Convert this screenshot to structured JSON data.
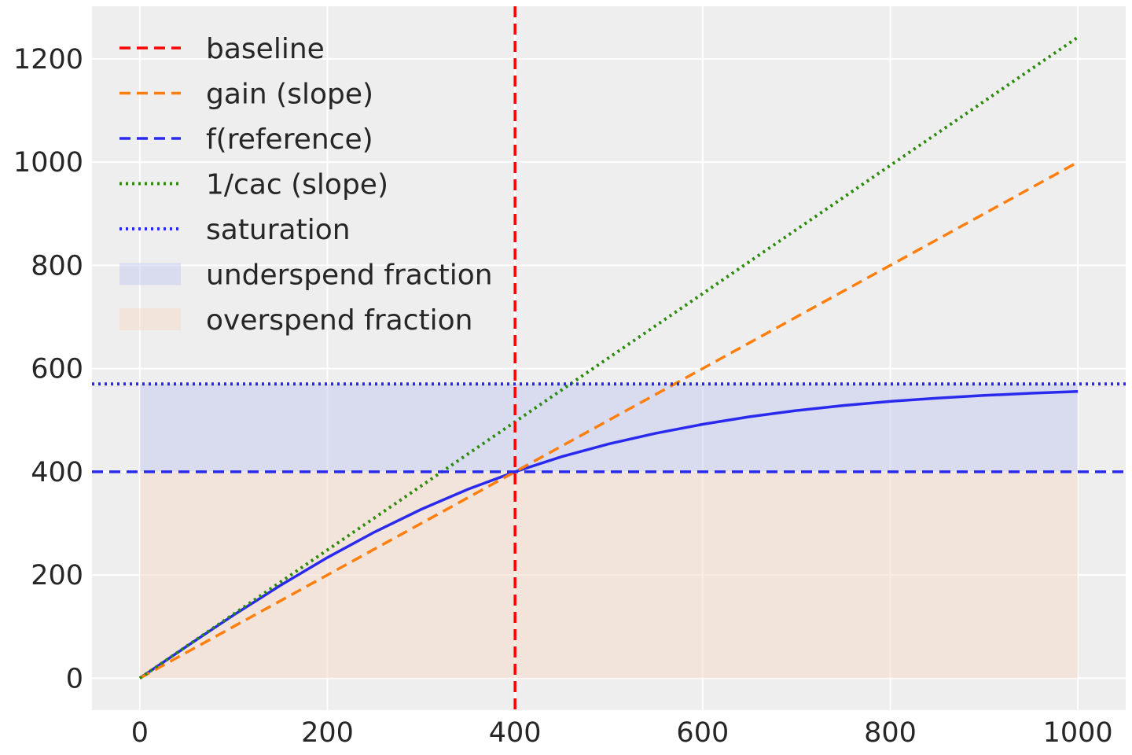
{
  "chart_data": {
    "type": "line",
    "title": "",
    "xlabel": "",
    "ylabel": "",
    "xlim": [
      -51,
      1051
    ],
    "ylim": [
      -62,
      1302
    ],
    "xticks": [
      0,
      200,
      400,
      600,
      800,
      1000
    ],
    "yticks": [
      0,
      200,
      400,
      600,
      800,
      1000,
      1200
    ],
    "grid": true,
    "legend_placement": "top-left",
    "background": "#eeeeee",
    "series": [
      {
        "name": "baseline",
        "kind": "vline",
        "x": 400,
        "style": "dashed",
        "color": "#ff0000"
      },
      {
        "name": "gain (slope)",
        "kind": "line",
        "x": [
          0,
          1000
        ],
        "y": [
          0,
          1000
        ],
        "style": "dashed",
        "color": "#ff7f0e"
      },
      {
        "name": "f(reference)",
        "kind": "hline",
        "y": 400,
        "style": "dashed",
        "color": "#2a2aee"
      },
      {
        "name": "1/cac (slope)",
        "kind": "line",
        "x": [
          0,
          1000
        ],
        "y": [
          0,
          1242
        ],
        "style": "dotted",
        "color": "#2a8a0a"
      },
      {
        "name": "saturation",
        "kind": "hline",
        "y": 570,
        "style": "dotted",
        "color": "#2a2aee"
      },
      {
        "name": "",
        "kind": "curve",
        "style": "solid",
        "color": "#2a2aee",
        "x": [
          0,
          50,
          100,
          150,
          200,
          250,
          300,
          350,
          400,
          450,
          500,
          550,
          600,
          650,
          700,
          750,
          800,
          850,
          900,
          950,
          1000
        ],
        "y": [
          0,
          61.8,
          122.3,
          179.9,
          233.8,
          283.0,
          327.2,
          366.3,
          400,
          429.4,
          454.0,
          474.6,
          492.0,
          506.6,
          518.6,
          528.4,
          536.4,
          542.7,
          547.9,
          552.1,
          555.6
        ]
      }
    ],
    "fills": [
      {
        "name": "underspend fraction",
        "x": [
          0,
          1000
        ],
        "y_range": [
          400,
          570
        ],
        "color": "#c8ccf0",
        "opacity": 0.55
      },
      {
        "name": "overspend fraction",
        "x": [
          0,
          1000
        ],
        "y_range": [
          0,
          400
        ],
        "color": "#f5d9c5",
        "opacity": 0.5
      }
    ]
  }
}
